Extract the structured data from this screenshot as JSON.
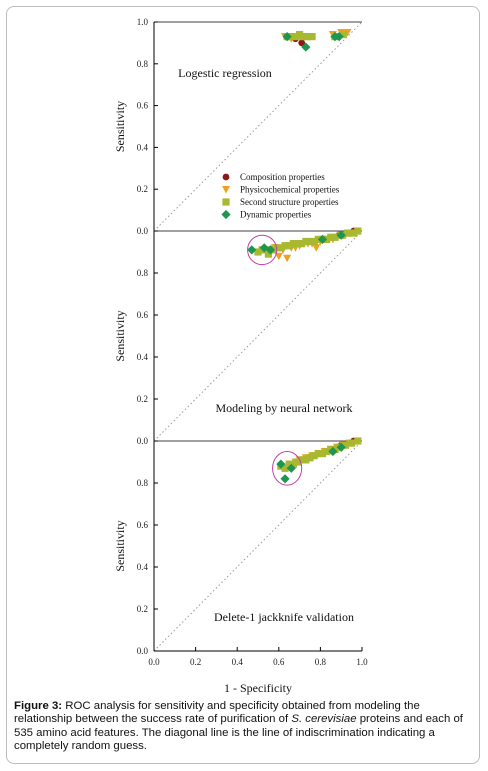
{
  "caption": {
    "label": "Figure 3:",
    "text_before": " ROC analysis for sensitivity and specificity obtained from modeling the relationship between the success rate of purification of ",
    "species": "S. cerevisiae",
    "text_after": " proteins and each of 535 amino acid features. The diagonal line is the line of indiscrimination indicating a completely random guess."
  },
  "colors": {
    "composition": "#8b1a1a",
    "physicochemical": "#f0a020",
    "second_structure": "#a8b830",
    "dynamic": "#1e9650",
    "highlight_circle": "#c040a0"
  },
  "chart_data": [
    {
      "type": "scatter",
      "title": "Logestic regression",
      "xlabel": "1 - Specificity",
      "ylabel": "Sensitivity",
      "xlim": [
        0.0,
        1.0
      ],
      "ylim": [
        0.0,
        1.0
      ],
      "xticks": [
        "0.0",
        "0.2",
        "0.4",
        "0.6",
        "0.8",
        "1.0"
      ],
      "yticks": [
        "0.0",
        "0.2",
        "0.4",
        "0.6",
        "0.8",
        "1.0"
      ],
      "legend_position": "center-right",
      "diagonal": true,
      "series": [
        {
          "name": "Composition properties",
          "marker": "circle",
          "points": [
            [
              0.68,
              0.92
            ],
            [
              0.71,
              0.9
            ],
            [
              0.88,
              0.93
            ]
          ]
        },
        {
          "name": "Physicochemical properties",
          "marker": "triangle",
          "points": [
            [
              0.63,
              0.93
            ],
            [
              0.66,
              0.92
            ],
            [
              0.7,
              0.93
            ],
            [
              0.75,
              0.93
            ],
            [
              0.86,
              0.94
            ],
            [
              0.9,
              0.95
            ],
            [
              0.93,
              0.95
            ]
          ]
        },
        {
          "name": "Second structure properties",
          "marker": "square",
          "points": [
            [
              0.64,
              0.93
            ],
            [
              0.66,
              0.93
            ],
            [
              0.68,
              0.93
            ],
            [
              0.7,
              0.94
            ],
            [
              0.72,
              0.93
            ],
            [
              0.74,
              0.93
            ],
            [
              0.76,
              0.93
            ],
            [
              0.87,
              0.93
            ],
            [
              0.91,
              0.94
            ]
          ]
        },
        {
          "name": "Dynamic properties",
          "marker": "diamond",
          "points": [
            [
              0.64,
              0.93
            ],
            [
              0.73,
              0.88
            ],
            [
              0.87,
              0.93
            ],
            [
              0.89,
              0.93
            ]
          ]
        }
      ]
    },
    {
      "type": "scatter",
      "title": "Modeling by neural network",
      "xlabel": "1 - Specificity",
      "ylabel": "Sensitivity",
      "xlim": [
        0.0,
        1.0
      ],
      "ylim": [
        0.0,
        1.0
      ],
      "xticks": [
        "0.0",
        "0.2",
        "0.4",
        "0.6",
        "0.8",
        "1.0"
      ],
      "yticks": [
        "0.0",
        "0.2",
        "0.4",
        "0.6",
        "0.8"
      ],
      "diagonal": true,
      "highlight": {
        "x": 0.52,
        "y": 0.91,
        "rx": 0.07,
        "ry": 0.07
      },
      "series": [
        {
          "name": "Composition properties",
          "marker": "circle",
          "points": [
            [
              0.86,
              0.97
            ],
            [
              0.89,
              0.98
            ],
            [
              0.91,
              0.98
            ],
            [
              0.93,
              0.99
            ],
            [
              0.95,
              0.99
            ],
            [
              0.96,
              1.0
            ],
            [
              0.97,
              1.0
            ]
          ]
        },
        {
          "name": "Physicochemical properties",
          "marker": "triangle",
          "points": [
            [
              0.55,
              0.91
            ],
            [
              0.58,
              0.92
            ],
            [
              0.6,
              0.88
            ],
            [
              0.62,
              0.91
            ],
            [
              0.64,
              0.87
            ],
            [
              0.66,
              0.92
            ],
            [
              0.68,
              0.92
            ],
            [
              0.7,
              0.93
            ],
            [
              0.72,
              0.94
            ],
            [
              0.74,
              0.94
            ],
            [
              0.76,
              0.94
            ],
            [
              0.78,
              0.92
            ],
            [
              0.8,
              0.95
            ],
            [
              0.82,
              0.96
            ],
            [
              0.84,
              0.96
            ],
            [
              0.86,
              0.96
            ],
            [
              0.88,
              0.97
            ],
            [
              0.9,
              0.98
            ],
            [
              0.92,
              0.98
            ],
            [
              0.94,
              0.99
            ]
          ]
        },
        {
          "name": "Second structure properties",
          "marker": "square",
          "points": [
            [
              0.5,
              0.9
            ],
            [
              0.52,
              0.91
            ],
            [
              0.54,
              0.91
            ],
            [
              0.55,
              0.89
            ],
            [
              0.57,
              0.91
            ],
            [
              0.59,
              0.92
            ],
            [
              0.61,
              0.92
            ],
            [
              0.63,
              0.93
            ],
            [
              0.65,
              0.93
            ],
            [
              0.67,
              0.94
            ],
            [
              0.69,
              0.94
            ],
            [
              0.71,
              0.94
            ],
            [
              0.73,
              0.95
            ],
            [
              0.75,
              0.95
            ],
            [
              0.77,
              0.95
            ],
            [
              0.79,
              0.96
            ],
            [
              0.81,
              0.96
            ],
            [
              0.83,
              0.96
            ],
            [
              0.85,
              0.97
            ],
            [
              0.87,
              0.97
            ],
            [
              0.9,
              0.98
            ],
            [
              0.93,
              0.99
            ],
            [
              0.96,
              0.99
            ],
            [
              0.98,
              1.0
            ]
          ]
        },
        {
          "name": "Dynamic properties",
          "marker": "diamond",
          "points": [
            [
              0.47,
              0.91
            ],
            [
              0.53,
              0.92
            ],
            [
              0.56,
              0.91
            ],
            [
              0.81,
              0.96
            ],
            [
              0.9,
              0.98
            ]
          ]
        }
      ]
    },
    {
      "type": "scatter",
      "title": "Delete-1 jackknife validation",
      "xlabel": "1 - Specificity",
      "ylabel": "Sensitivity",
      "xlim": [
        0.0,
        1.0
      ],
      "ylim": [
        0.0,
        1.0
      ],
      "xticks": [
        "0.0",
        "0.2",
        "0.4",
        "0.6",
        "0.8",
        "1.0"
      ],
      "yticks": [
        "0.0",
        "0.2",
        "0.4",
        "0.6",
        "0.8"
      ],
      "diagonal": true,
      "highlight": {
        "x": 0.64,
        "y": 0.87,
        "rx": 0.07,
        "ry": 0.08
      },
      "series": [
        {
          "name": "Composition properties",
          "marker": "circle",
          "points": [
            [
              0.86,
              0.96
            ],
            [
              0.88,
              0.97
            ],
            [
              0.9,
              0.98
            ],
            [
              0.92,
              0.98
            ],
            [
              0.94,
              0.99
            ],
            [
              0.96,
              1.0
            ]
          ]
        },
        {
          "name": "Physicochemical properties",
          "marker": "triangle",
          "points": [
            [
              0.65,
              0.88
            ],
            [
              0.68,
              0.9
            ],
            [
              0.7,
              0.91
            ],
            [
              0.73,
              0.92
            ],
            [
              0.76,
              0.93
            ],
            [
              0.79,
              0.94
            ],
            [
              0.82,
              0.95
            ],
            [
              0.85,
              0.96
            ],
            [
              0.88,
              0.97
            ],
            [
              0.91,
              0.98
            ],
            [
              0.94,
              0.99
            ]
          ]
        },
        {
          "name": "Second structure properties",
          "marker": "square",
          "points": [
            [
              0.61,
              0.88
            ],
            [
              0.63,
              0.87
            ],
            [
              0.65,
              0.89
            ],
            [
              0.67,
              0.89
            ],
            [
              0.69,
              0.9
            ],
            [
              0.71,
              0.91
            ],
            [
              0.73,
              0.91
            ],
            [
              0.75,
              0.92
            ],
            [
              0.77,
              0.93
            ],
            [
              0.79,
              0.94
            ],
            [
              0.81,
              0.94
            ],
            [
              0.83,
              0.95
            ],
            [
              0.85,
              0.96
            ],
            [
              0.87,
              0.96
            ],
            [
              0.89,
              0.97
            ],
            [
              0.92,
              0.98
            ],
            [
              0.95,
              0.99
            ],
            [
              0.98,
              1.0
            ]
          ]
        },
        {
          "name": "Dynamic properties",
          "marker": "diamond",
          "points": [
            [
              0.61,
              0.89
            ],
            [
              0.63,
              0.82
            ],
            [
              0.66,
              0.87
            ],
            [
              0.86,
              0.95
            ],
            [
              0.9,
              0.97
            ]
          ]
        }
      ]
    }
  ]
}
